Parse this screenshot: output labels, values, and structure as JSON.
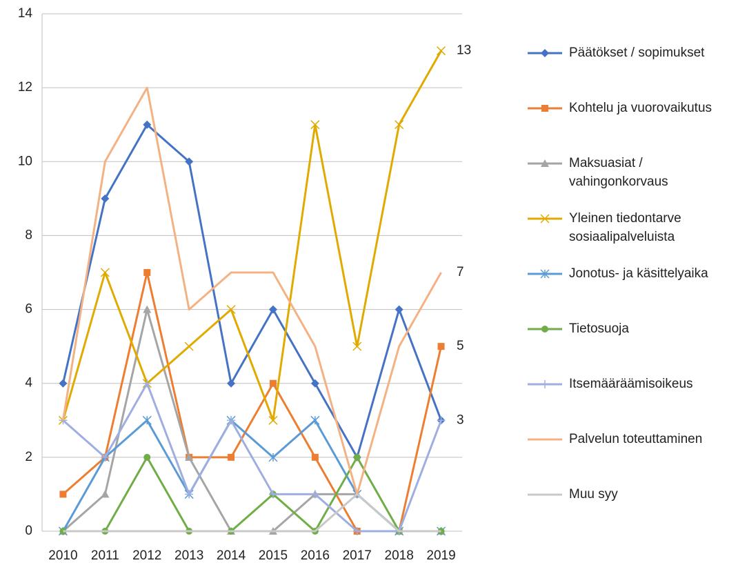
{
  "chart_data": {
    "type": "line",
    "categories": [
      "2010",
      "2011",
      "2012",
      "2013",
      "2014",
      "2015",
      "2016",
      "2017",
      "2018",
      "2019"
    ],
    "ylim": [
      0,
      14
    ],
    "yticks": [
      0,
      2,
      4,
      6,
      8,
      10,
      12,
      14
    ],
    "grid": true,
    "legend": "right",
    "series": [
      {
        "name": "Päätökset / sopimukset",
        "color": "#4472c4",
        "marker": "diamond",
        "label_last": true,
        "values": [
          4,
          9,
          11,
          10,
          4,
          6,
          4,
          2,
          6,
          3
        ]
      },
      {
        "name": "Kohtelu ja vuorovaikutus",
        "color": "#ed7d31",
        "marker": "square",
        "label_last": true,
        "values": [
          1,
          2,
          7,
          2,
          2,
          4,
          2,
          0,
          0,
          5
        ]
      },
      {
        "name": "Maksuasiat / vahingonkorvaus",
        "color": "#a5a5a5",
        "marker": "triangle",
        "values": [
          0,
          1,
          6,
          2,
          0,
          0,
          1,
          1,
          0,
          0
        ]
      },
      {
        "name": "Yleinen tiedontarve sosiaalipalveluista",
        "color": "#e0aa00",
        "marker": "x",
        "label_last": true,
        "values": [
          3,
          7,
          4,
          5,
          6,
          3,
          11,
          5,
          11,
          13
        ]
      },
      {
        "name": "Jonotus- ja käsittelyaika",
        "color": "#5b9bd5",
        "marker": "star",
        "values": [
          0,
          2,
          3,
          1,
          3,
          2,
          3,
          1,
          0,
          0
        ]
      },
      {
        "name": "Tietosuoja",
        "color": "#70ad47",
        "marker": "circle",
        "values": [
          0,
          0,
          2,
          0,
          0,
          1,
          0,
          2,
          0,
          0
        ]
      },
      {
        "name": "Itsemääräämisoikeus",
        "color": "#9eaee0",
        "marker": "plus",
        "values": [
          3,
          2,
          4,
          1,
          3,
          1,
          1,
          0,
          0,
          3
        ]
      },
      {
        "name": "Palvelun toteuttaminen",
        "color": "#f4b183",
        "marker": "none",
        "label_last": true,
        "values": [
          3,
          10,
          12,
          6,
          7,
          7,
          5,
          1,
          5,
          7
        ]
      },
      {
        "name": "Muu syy",
        "color": "#c9c9c9",
        "marker": "none",
        "values": [
          0,
          0,
          0,
          0,
          0,
          0,
          0,
          1,
          0,
          0
        ]
      }
    ]
  }
}
